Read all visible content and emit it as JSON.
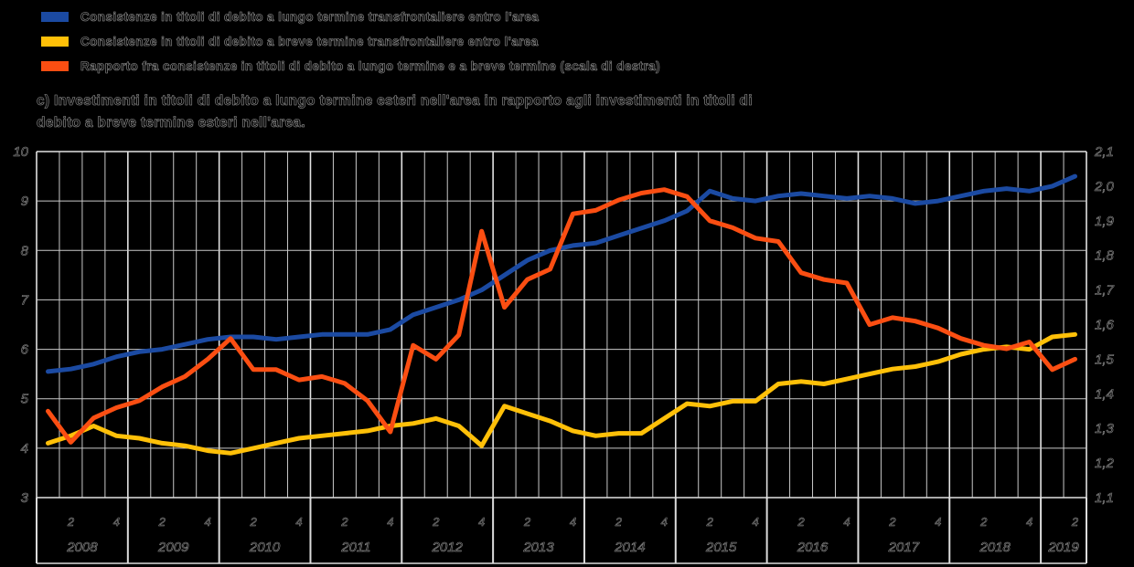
{
  "title": {
    "line1": "c) Investimenti in titoli di debito a lungo termine esteri nell'area in rapporto agli investimenti in titoli di",
    "line2": "debito a breve termine esteri nell'area."
  },
  "legend": {
    "items": [
      {
        "label": "Consistenze in titoli di debito a lungo termine transfrontaliere entro l'area",
        "color": "#1b4aa2"
      },
      {
        "label": "Consistenze in titoli di debito a breve termine transfrontaliere entro l'area",
        "color": "#ffc008"
      },
      {
        "label": "Rapporto fra consistenze in titoli di debito a lungo termine e a breve termine (scala di destra)",
        "color": "#fb4e12"
      }
    ]
  },
  "chart_data": {
    "type": "line",
    "frequency": "quarterly",
    "start": "2008-Q1",
    "end": "2019-Q2",
    "grid": true,
    "legend_position": "top-left",
    "years": [
      "2008",
      "2009",
      "2010",
      "2011",
      "2012",
      "2013",
      "2014",
      "2015",
      "2016",
      "2017",
      "2018",
      "2019"
    ],
    "quarter_tick_labels": [
      "2",
      "4"
    ],
    "left_axis": {
      "max": 10,
      "min": 3,
      "ticks": [
        "10",
        "9",
        "8",
        "7",
        "6",
        "5",
        "4",
        "3"
      ]
    },
    "right_axis": {
      "max": 2.1,
      "min": 1.1,
      "ticks": [
        "2,1",
        "2,0",
        "1,9",
        "1,8",
        "1,7",
        "1,6",
        "1,5",
        "1,4",
        "1,3",
        "1,2",
        "1,1"
      ]
    },
    "series": [
      {
        "name": "Consistenze in titoli di debito a lungo termine transfrontaliere entro l'area",
        "axis": "left",
        "color": "#1b4aa2",
        "values": [
          5.55,
          5.6,
          5.7,
          5.85,
          5.95,
          6.0,
          6.1,
          6.2,
          6.25,
          6.25,
          6.2,
          6.25,
          6.3,
          6.3,
          6.3,
          6.4,
          6.7,
          6.85,
          7.0,
          7.2,
          7.5,
          7.8,
          8.0,
          8.1,
          8.15,
          8.3,
          8.45,
          8.6,
          8.8,
          9.2,
          9.05,
          9.0,
          9.1,
          9.15,
          9.1,
          9.05,
          9.1,
          9.05,
          8.95,
          9.0,
          9.1,
          9.2,
          9.25,
          9.2,
          9.3,
          9.5
        ]
      },
      {
        "name": "Consistenze in titoli di debito a breve termine transfrontaliere entro l'area",
        "axis": "left",
        "color": "#ffc008",
        "values": [
          4.1,
          4.25,
          4.45,
          4.25,
          4.2,
          4.1,
          4.05,
          3.95,
          3.9,
          4.0,
          4.1,
          4.2,
          4.25,
          4.3,
          4.35,
          4.45,
          4.5,
          4.6,
          4.45,
          4.05,
          4.85,
          4.7,
          4.55,
          4.35,
          4.25,
          4.3,
          4.3,
          4.6,
          4.9,
          4.85,
          4.95,
          4.95,
          5.3,
          5.35,
          5.3,
          5.4,
          5.5,
          5.6,
          5.65,
          5.75,
          5.9,
          6.0,
          6.05,
          6.0,
          6.25,
          6.3
        ]
      },
      {
        "name": "Rapporto fra consistenze in titoli di debito a lungo termine e a breve termine (scala di destra)",
        "axis": "right",
        "color": "#fb4e12",
        "values": [
          1.35,
          1.26,
          1.33,
          1.36,
          1.38,
          1.42,
          1.45,
          1.5,
          1.56,
          1.47,
          1.47,
          1.44,
          1.45,
          1.43,
          1.38,
          1.29,
          1.54,
          1.5,
          1.57,
          1.87,
          1.65,
          1.73,
          1.76,
          1.92,
          1.93,
          1.96,
          1.98,
          1.99,
          1.97,
          1.9,
          1.88,
          1.85,
          1.84,
          1.75,
          1.73,
          1.72,
          1.6,
          1.62,
          1.61,
          1.59,
          1.56,
          1.54,
          1.53,
          1.55,
          1.47,
          1.5
        ]
      }
    ]
  }
}
